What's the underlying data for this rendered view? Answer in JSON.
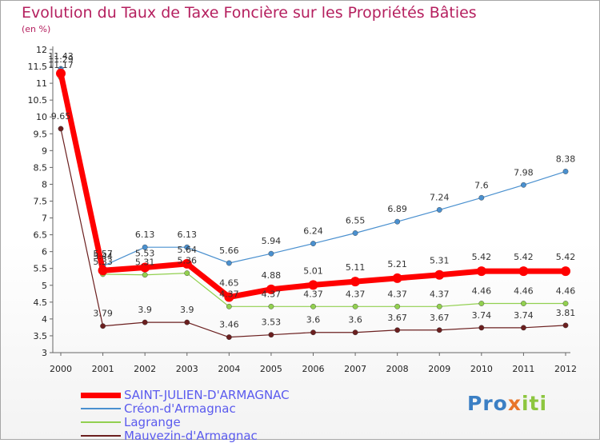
{
  "title": "Evolution du Taux de Taxe Foncière sur les Propriétés Bâties",
  "subtitle": "(en %)",
  "logo": {
    "parts": [
      "Pro",
      "x",
      "iti"
    ],
    "colors": [
      "#3b7fc4",
      "#e8762b",
      "#8dc63f"
    ]
  },
  "chart_data": {
    "type": "line",
    "title": "Evolution du Taux de Taxe Foncière sur les Propriétés Bâties",
    "ylabel": "(en %)",
    "x": [
      "2000",
      "2001",
      "2002",
      "2003",
      "2004",
      "2005",
      "2006",
      "2007",
      "2008",
      "2009",
      "2010",
      "2011",
      "2012"
    ],
    "yticks": [
      "3",
      "3.5",
      "4",
      "4.5",
      "5",
      "5.5",
      "6",
      "6.5",
      "7",
      "7.5",
      "8",
      "8.5",
      "9",
      "9.5",
      "10",
      "10.5",
      "11",
      "11.5",
      "12"
    ],
    "ylim": [
      3,
      12
    ],
    "series": [
      {
        "name": "Mauvezin-d'Armagnac",
        "color": "#6b1f1f",
        "width": 1.2,
        "values": [
          9.65,
          3.79,
          3.9,
          3.9,
          3.46,
          3.53,
          3.6,
          3.6,
          3.67,
          3.67,
          3.74,
          3.74,
          3.81
        ],
        "labels": [
          "9.65",
          "3.79",
          "3.9",
          "3.9",
          "3.46",
          "3.53",
          "3.6",
          "3.6",
          "3.67",
          "3.67",
          "3.74",
          "3.74",
          "3.81"
        ]
      },
      {
        "name": "Lagrange",
        "color": "#92d050",
        "width": 1.2,
        "values": [
          11.17,
          5.33,
          5.31,
          5.36,
          4.37,
          4.37,
          4.37,
          4.37,
          4.37,
          4.37,
          4.46,
          4.46,
          4.46
        ],
        "labels": [
          "11.17",
          "5.33",
          "5.31",
          "5.36",
          "4.37",
          "4.37",
          "4.37",
          "4.37",
          "4.37",
          "4.37",
          "4.46",
          "4.46",
          "4.46"
        ]
      },
      {
        "name": "Créon-d'Armagnac",
        "color": "#4a90cf",
        "width": 1.2,
        "values": [
          11.43,
          5.57,
          6.13,
          6.13,
          5.66,
          5.94,
          6.24,
          6.55,
          6.89,
          7.24,
          7.6,
          7.98,
          8.38
        ],
        "labels": [
          "11.43",
          "5.57",
          "6.13",
          "6.13",
          "5.66",
          "5.94",
          "6.24",
          "6.55",
          "6.89",
          "7.24",
          "7.6",
          "7.98",
          "8.38"
        ]
      },
      {
        "name": "SAINT-JULIEN-D'ARMAGNAC",
        "color": "#ff0000",
        "width": 7,
        "values": [
          11.29,
          5.44,
          5.53,
          5.64,
          4.65,
          4.88,
          5.01,
          5.11,
          5.21,
          5.31,
          5.42,
          5.42,
          5.42
        ],
        "labels": [
          "11.29",
          "5.44",
          "5.53",
          "5.64",
          "4.65",
          "4.88",
          "5.01",
          "5.11",
          "5.21",
          "5.31",
          "5.42",
          "5.42",
          "5.42"
        ]
      }
    ],
    "legend": [
      "SAINT-JULIEN-D'ARMAGNAC",
      "Créon-d'Armagnac",
      "Lagrange",
      "Mauvezin-d'Armagnac"
    ],
    "legend_colors": [
      "#ff0000",
      "#4a90cf",
      "#92d050",
      "#6b1f1f"
    ],
    "legend_widths": [
      7,
      2,
      2,
      2
    ],
    "legend_position": "bottom-left"
  }
}
